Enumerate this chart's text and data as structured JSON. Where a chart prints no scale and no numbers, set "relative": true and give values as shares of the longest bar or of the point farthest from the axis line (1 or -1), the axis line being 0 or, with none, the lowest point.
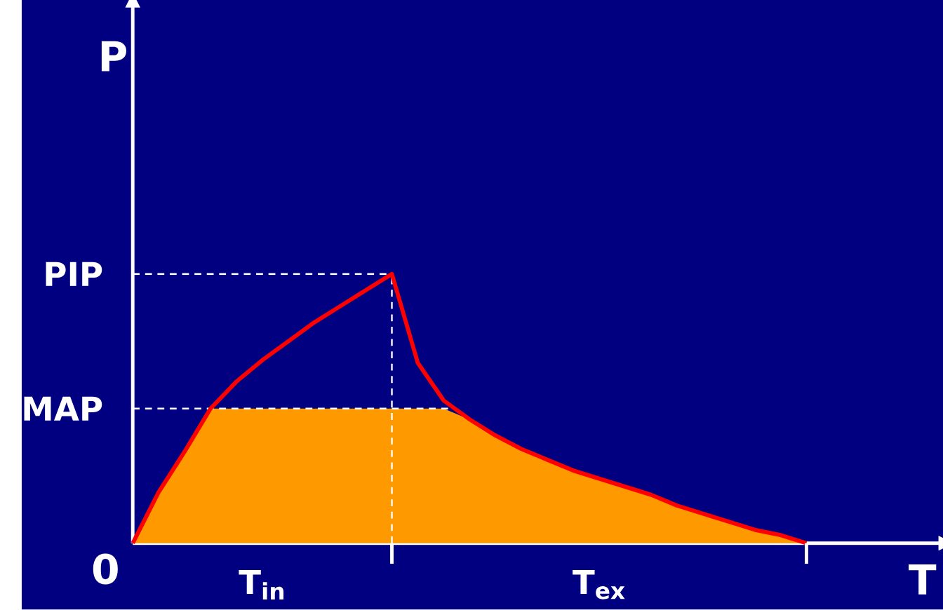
{
  "chart_data": {
    "type": "line",
    "relative": true,
    "xlabel": "T",
    "ylabel": "P",
    "marker": "none",
    "categories": [
      null,
      null,
      null,
      null,
      null,
      null,
      null,
      null,
      null,
      null,
      null,
      null,
      null,
      null,
      null,
      null,
      null,
      null,
      null,
      null,
      null,
      null,
      null,
      null,
      null,
      null,
      null
    ],
    "series": [
      {
        "type": "area",
        "color": "#ff9900",
        "values": [
          0,
          0.19,
          0.34,
          0.5,
          0.5,
          0.5,
          0.5,
          0.5,
          0.5,
          0.5,
          0.5,
          0.5,
          0.5,
          0.46,
          0.4,
          0.35,
          0.31,
          0.27,
          0.24,
          0.21,
          0.18,
          0.14,
          0.11,
          0.08,
          0.05,
          0.03,
          0
        ]
      },
      {
        "color": "#ff0000",
        "values": [
          0,
          0.19,
          0.34,
          0.5,
          0.6,
          0.68,
          0.75,
          0.82,
          0.88,
          0.94,
          1,
          0.67,
          0.53,
          0.46,
          0.4,
          0.35,
          0.31,
          0.27,
          0.24,
          0.21,
          0.18,
          0.14,
          0.11,
          0.08,
          0.05,
          0.03,
          0
        ]
      }
    ],
    "ref_lines": [
      {
        "axis": "y",
        "value": 1,
        "label": "PIP",
        "color": "#ffffff",
        "line_style": "dashed"
      },
      {
        "axis": "y",
        "value": 0.5,
        "label": "MAP",
        "color": "#ffffff",
        "line_style": "dashed"
      }
    ],
    "annotations": [
      "0",
      "T$_{in}$",
      "T$_{ex}$"
    ]
  }
}
